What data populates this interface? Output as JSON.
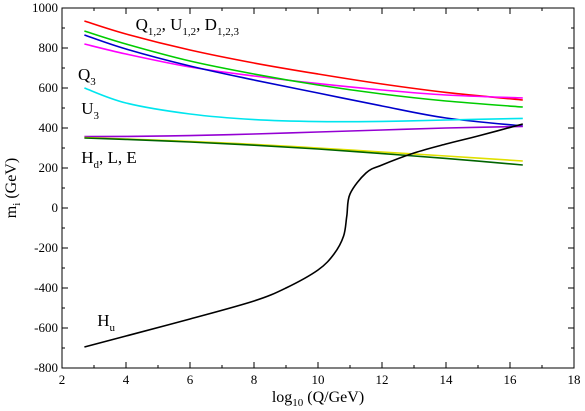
{
  "chart_data": {
    "type": "line",
    "xlabel": {
      "main": "log",
      "sub": "10",
      "rest": " (Q/GeV)"
    },
    "ylabel": {
      "main": "m",
      "sub": "i",
      "rest": " (GeV)"
    },
    "xlim": [
      2,
      18
    ],
    "ylim": [
      -800,
      1000
    ],
    "xticks": [
      2,
      4,
      6,
      8,
      10,
      12,
      14,
      16,
      18
    ],
    "yticks": [
      -800,
      -600,
      -400,
      -200,
      0,
      200,
      400,
      600,
      800,
      1000
    ],
    "grid": false,
    "annotations": [
      {
        "id": "q12",
        "parts": [
          [
            "Q",
            ""
          ],
          [
            "1,2",
            ", "
          ],
          [
            "U",
            ""
          ],
          [
            "1,2",
            ", "
          ],
          [
            "D",
            ""
          ],
          [
            "1,2,3",
            ""
          ]
        ],
        "x": 4.3,
        "y": 890
      },
      {
        "id": "q3",
        "parts": [
          [
            "Q",
            ""
          ],
          [
            "3",
            ""
          ]
        ],
        "x": 2.5,
        "y": 640
      },
      {
        "id": "u3",
        "parts": [
          [
            "U",
            ""
          ],
          [
            "3",
            ""
          ]
        ],
        "x": 2.6,
        "y": 470
      },
      {
        "id": "hd",
        "parts": [
          [
            "H",
            ""
          ],
          [
            "d",
            ", L, E"
          ]
        ],
        "x": 2.6,
        "y": 225
      },
      {
        "id": "hu",
        "parts": [
          [
            "H",
            ""
          ],
          [
            "u",
            ""
          ]
        ],
        "x": 3.1,
        "y": -590
      }
    ],
    "series": [
      {
        "color": "#ff0000",
        "x": [
          2.7,
          4,
          6,
          8,
          10,
          12,
          14,
          16.4
        ],
        "y": [
          935,
          870,
          790,
          725,
          670,
          620,
          578,
          540
        ]
      },
      {
        "color": "#ff00ff",
        "x": [
          2.7,
          4,
          6,
          8,
          10,
          12,
          14,
          16.4
        ],
        "y": [
          820,
          770,
          705,
          660,
          622,
          590,
          565,
          550
        ]
      },
      {
        "color": "#00cc00",
        "x": [
          2.7,
          4,
          6,
          8,
          10,
          12,
          14,
          16.4
        ],
        "y": [
          885,
          820,
          735,
          670,
          615,
          570,
          535,
          505
        ]
      },
      {
        "color": "#0000cc",
        "x": [
          2.7,
          4,
          6,
          8,
          10,
          12,
          14,
          16.4
        ],
        "y": [
          865,
          795,
          710,
          640,
          575,
          510,
          450,
          410
        ]
      },
      {
        "color": "#00e5ee",
        "x": [
          2.7,
          4,
          6,
          8,
          10,
          12,
          14,
          16.4
        ],
        "y": [
          600,
          525,
          470,
          442,
          432,
          433,
          440,
          448
        ]
      },
      {
        "color": "#9400d3",
        "x": [
          2.7,
          4,
          6,
          8,
          10,
          12,
          14,
          16.4
        ],
        "y": [
          357,
          358,
          362,
          370,
          380,
          390,
          400,
          408
        ]
      },
      {
        "color": "#e0e000",
        "x": [
          2.7,
          4,
          6,
          8,
          10,
          12,
          14,
          16.4
        ],
        "y": [
          352,
          345,
          333,
          318,
          300,
          280,
          260,
          235
        ]
      },
      {
        "color": "#006400",
        "x": [
          2.7,
          4,
          6,
          8,
          10,
          12,
          14,
          16.4
        ],
        "y": [
          350,
          343,
          330,
          314,
          295,
          272,
          248,
          215
        ]
      },
      {
        "color": "#000000",
        "x": [
          2.7,
          4,
          6,
          8,
          9,
          10,
          10.5,
          10.8,
          10.9,
          11.0,
          11.5,
          12,
          13,
          14,
          15,
          16.4
        ],
        "y": [
          -695,
          -640,
          -555,
          -465,
          -400,
          -310,
          -230,
          -140,
          -40,
          70,
          175,
          215,
          275,
          320,
          360,
          420
        ]
      }
    ]
  }
}
